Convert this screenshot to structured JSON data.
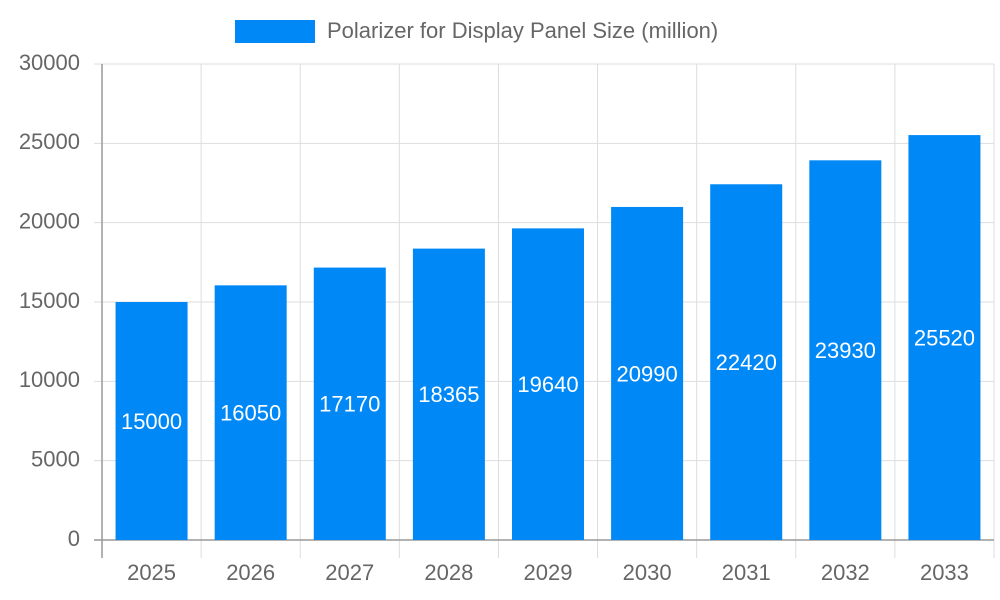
{
  "chart_data": {
    "type": "bar",
    "categories": [
      "2025",
      "2026",
      "2027",
      "2028",
      "2029",
      "2030",
      "2031",
      "2032",
      "2033"
    ],
    "series": [
      {
        "name": "Polarizer for Display Panel Size (million)",
        "color": "#0088f7",
        "values": [
          15000,
          16050,
          17170,
          18365,
          19640,
          20990,
          22420,
          23930,
          25520
        ]
      }
    ],
    "ylim": [
      0,
      30000
    ],
    "yticks": [
      0,
      5000,
      10000,
      15000,
      20000,
      25000,
      30000
    ],
    "grid": true,
    "legend": "top"
  }
}
